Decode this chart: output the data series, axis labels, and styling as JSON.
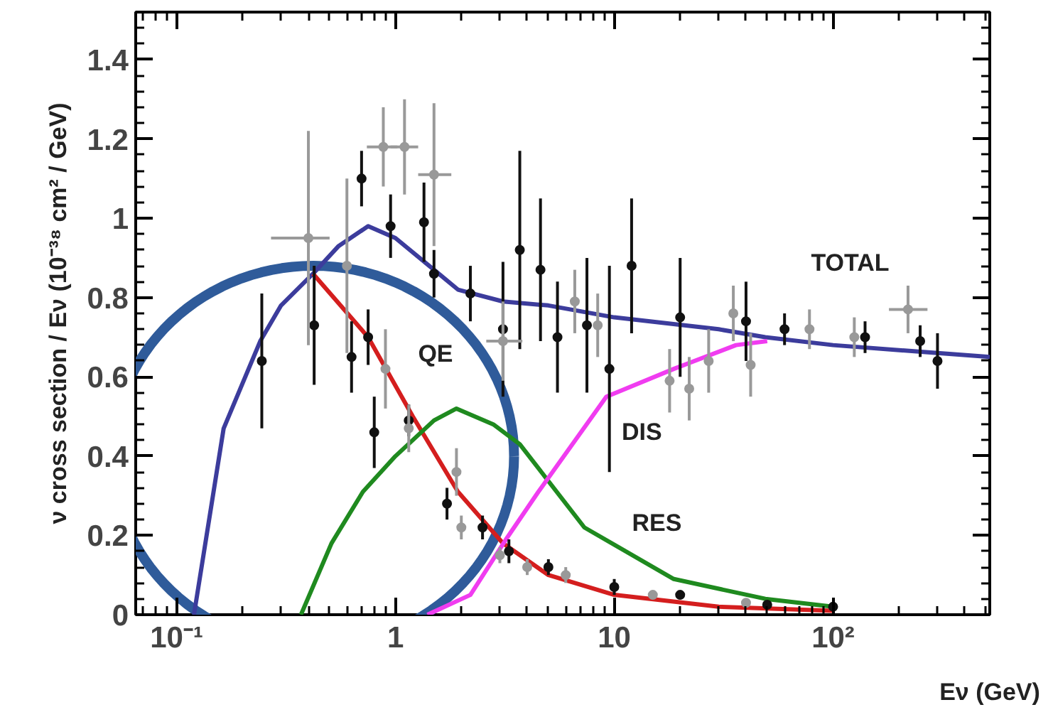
{
  "chart_data": {
    "type": "line",
    "xlabel": "Eν (GeV)",
    "ylabel": "ν cross section / Eν (10⁻³⁸ cm² / GeV)",
    "log": "x",
    "xlim": [
      0.065,
      520
    ],
    "ylim": [
      0,
      1.52
    ],
    "xticks": [
      {
        "value": 0.1,
        "label": "10⁻¹"
      },
      1,
      10,
      {
        "value": 100,
        "label": "10²"
      }
    ],
    "yticks": [
      0,
      0.2,
      0.4,
      0.6,
      0.8,
      1,
      1.2,
      1.4
    ],
    "grid": false,
    "line_style": "solid",
    "series": [
      {
        "name": "TOTAL",
        "color": "#3c3c9c",
        "x": [
          0.12,
          0.164,
          0.241,
          0.3,
          0.42,
          0.55,
          0.75,
          1.0,
          1.5,
          1.93,
          3.1,
          5,
          10,
          30,
          49,
          100,
          300,
          520
        ],
        "values": [
          0,
          0.47,
          0.69,
          0.78,
          0.86,
          0.93,
          0.98,
          0.95,
          0.87,
          0.82,
          0.79,
          0.78,
          0.75,
          0.72,
          0.7,
          0.68,
          0.66,
          0.65
        ]
      },
      {
        "name": "QE",
        "color": "#d41e1e",
        "x": [
          0.42,
          0.75,
          1.2,
          1.93,
          3.1,
          5,
          10,
          30,
          100
        ],
        "values": [
          0.86,
          0.7,
          0.5,
          0.31,
          0.18,
          0.1,
          0.05,
          0.02,
          0.01
        ]
      },
      {
        "name": "RES",
        "color": "#1f8a1f",
        "x": [
          0.37,
          0.51,
          0.71,
          1.0,
          1.5,
          1.9,
          2.8,
          3.7,
          7.3,
          18.7,
          49,
          100
        ],
        "values": [
          0,
          0.18,
          0.31,
          0.4,
          0.49,
          0.52,
          0.48,
          0.43,
          0.22,
          0.09,
          0.04,
          0.02
        ]
      },
      {
        "name": "DIS",
        "color": "#f03cf0",
        "x": [
          1.4,
          2.2,
          3.2,
          4.5,
          9.2,
          18.7,
          36,
          50
        ],
        "values": [
          0,
          0.05,
          0.19,
          0.31,
          0.55,
          0.62,
          0.68,
          0.69
        ]
      },
      {
        "type": "scatter",
        "marker": "circle",
        "color": "#111111",
        "x": [
          0.245,
          0.425,
          0.63,
          0.7,
          0.75,
          0.8,
          0.95,
          1.15,
          1.35,
          1.5,
          1.72,
          2.2,
          2.5,
          3.1,
          3.3,
          3.7,
          4.6,
          5,
          5.5,
          7.5,
          9.5,
          10,
          12,
          20,
          20,
          40,
          50,
          60,
          100,
          140,
          250,
          300
        ],
        "values": [
          0.64,
          0.73,
          0.65,
          1.1,
          0.7,
          0.46,
          0.98,
          0.49,
          0.99,
          0.86,
          0.28,
          0.81,
          0.22,
          0.72,
          0.16,
          0.92,
          0.87,
          0.12,
          0.7,
          0.73,
          0.62,
          0.07,
          0.88,
          0.75,
          0.05,
          0.74,
          0.025,
          0.72,
          0.02,
          0.7,
          0.69,
          0.64
        ],
        "errors": [
          0.17,
          0.15,
          0.09,
          0.07,
          0.07,
          0.09,
          0.08,
          0.04,
          0.1,
          0.06,
          0.04,
          0.07,
          0.03,
          0.17,
          0.03,
          0.25,
          0.18,
          0.02,
          0.14,
          0.17,
          0.26,
          0.02,
          0.17,
          0.15,
          0.01,
          0.1,
          0.01,
          0.04,
          0.01,
          0.04,
          0.04,
          0.07
        ]
      },
      {
        "type": "scatter",
        "marker": "circle",
        "color": "#999999",
        "x": [
          0.4,
          0.6,
          0.88,
          0.9,
          1.1,
          1.15,
          1.5,
          1.9,
          2,
          3,
          3.1,
          4,
          6,
          6.6,
          8.4,
          15,
          17.9,
          22,
          27,
          35,
          40,
          42,
          78,
          125,
          220
        ],
        "values": [
          0.95,
          0.88,
          1.18,
          0.62,
          1.18,
          0.47,
          1.11,
          0.36,
          0.22,
          0.15,
          0.69,
          0.12,
          0.1,
          0.79,
          0.73,
          0.05,
          0.59,
          0.57,
          0.64,
          0.76,
          0.03,
          0.63,
          0.72,
          0.7,
          0.77
        ],
        "errors": [
          0.27,
          0.22,
          0.1,
          0.1,
          0.12,
          0.06,
          0.18,
          0.06,
          0.03,
          0.02,
          0.1,
          0.02,
          0.02,
          0.08,
          0.08,
          0.01,
          0.08,
          0.08,
          0.08,
          0.07,
          0.01,
          0.08,
          0.05,
          0.05,
          0.06
        ],
        "xerrors": [
          [
            0.27,
            0.5
          ],
          null,
          [
            0.74,
            1.02
          ],
          null,
          [
            0.95,
            1.27
          ],
          null,
          [
            1.27,
            1.8
          ],
          null,
          null,
          null,
          [
            2.6,
            3.8
          ],
          null,
          null,
          null,
          null,
          null,
          null,
          null,
          null,
          null,
          null,
          null,
          null,
          null,
          [
            180,
            270
          ]
        ]
      }
    ]
  }
}
